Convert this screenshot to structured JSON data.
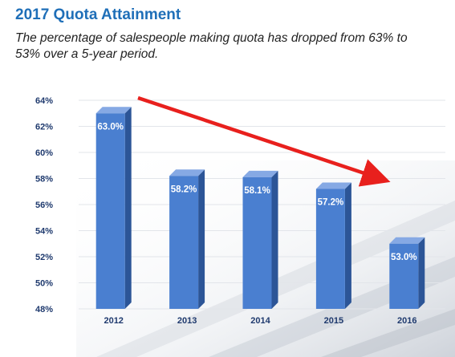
{
  "title": "2017 Quota Attainment",
  "subtitle": "The percentage of salespeople making quota has dropped from 63% to 53% over a 5-year period.",
  "colors": {
    "bar_front": "#4a7fd0",
    "bar_side": "#2c5597",
    "bar_top": "#86a9e4",
    "arrow": "#e8201d",
    "title": "#1f6fb8"
  },
  "chart_data": {
    "type": "bar",
    "categories": [
      "2012",
      "2013",
      "2014",
      "2015",
      "2016"
    ],
    "values": [
      63.0,
      58.2,
      58.1,
      57.2,
      53.0
    ],
    "data_labels": [
      "63.0%",
      "58.2%",
      "58.1%",
      "57.2%",
      "53.0%"
    ],
    "title": "2017 Quota Attainment",
    "xlabel": "",
    "ylabel": "",
    "ylim": [
      48,
      64
    ],
    "yticks": [
      48,
      50,
      52,
      54,
      56,
      58,
      60,
      62,
      64
    ],
    "ytick_labels": [
      "48%",
      "50%",
      "52%",
      "54%",
      "56%",
      "58%",
      "60%",
      "62%",
      "64%"
    ],
    "grid": true,
    "legend": "none",
    "annotation": "red downward trend arrow"
  }
}
